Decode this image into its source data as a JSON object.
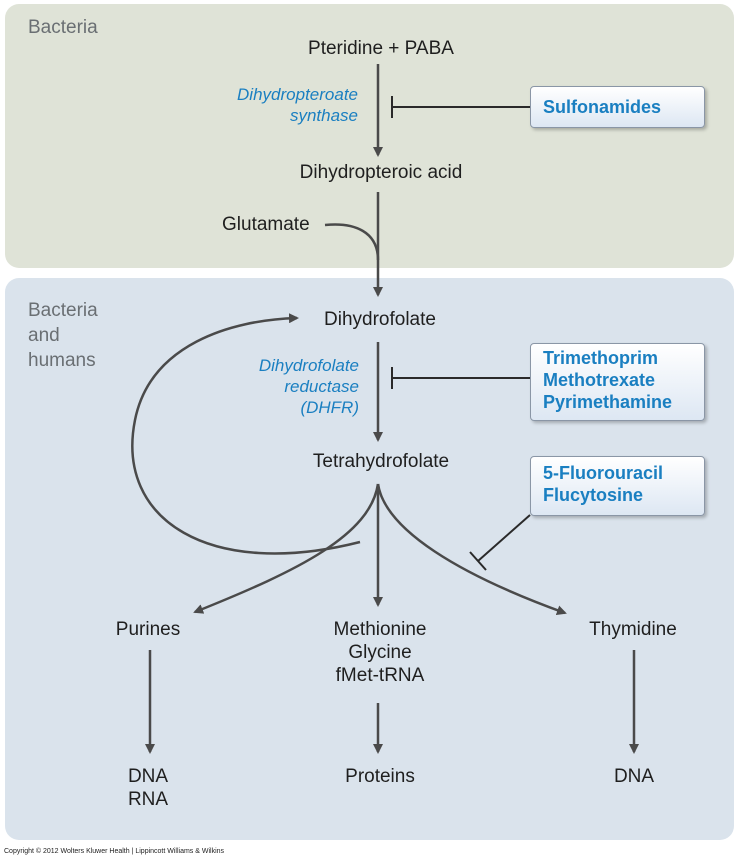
{
  "regions": {
    "top_label": "Bacteria",
    "bottom_label_line1": "Bacteria",
    "bottom_label_line2": "and",
    "bottom_label_line3": "humans"
  },
  "nodes": {
    "pteridine_paba": "Pteridine + PABA",
    "dihydropteroic_acid": "Dihydropteroic acid",
    "glutamate": "Glutamate",
    "dihydrofolate": "Dihydrofolate",
    "tetrahydrofolate": "Tetrahydrofolate",
    "purines": "Purines",
    "methionine": "Methionine",
    "glycine": "Glycine",
    "fmet_trna": "fMet-tRNA",
    "thymidine": "Thymidine",
    "dna_left": "DNA",
    "rna_left": "RNA",
    "proteins": "Proteins",
    "dna_right": "DNA"
  },
  "enzymes": {
    "dhps_line1": "Dihydropteroate",
    "dhps_line2": "synthase",
    "dhfr_line1": "Dihydrofolate",
    "dhfr_line2": "reductase",
    "dhfr_line3": "(DHFR)"
  },
  "drugs": {
    "sulfonamides": "Sulfonamides",
    "trimethoprim": "Trimethoprim",
    "methotrexate": "Methotrexate",
    "pyrimethamine": "Pyrimethamine",
    "fluorouracil": "5-Fluorouracil",
    "flucytosine": "Flucytosine"
  },
  "colors": {
    "bacteria_region": "#dfe3d7",
    "shared_region": "#dae3ec",
    "enzyme_text": "#1a7fc1",
    "drug_text": "#1a7fc1",
    "arrow": "#4a4a4a"
  },
  "copyright": "Copyright © 2012 Wolters Kluwer Health | Lippincott Williams & Wilkins"
}
